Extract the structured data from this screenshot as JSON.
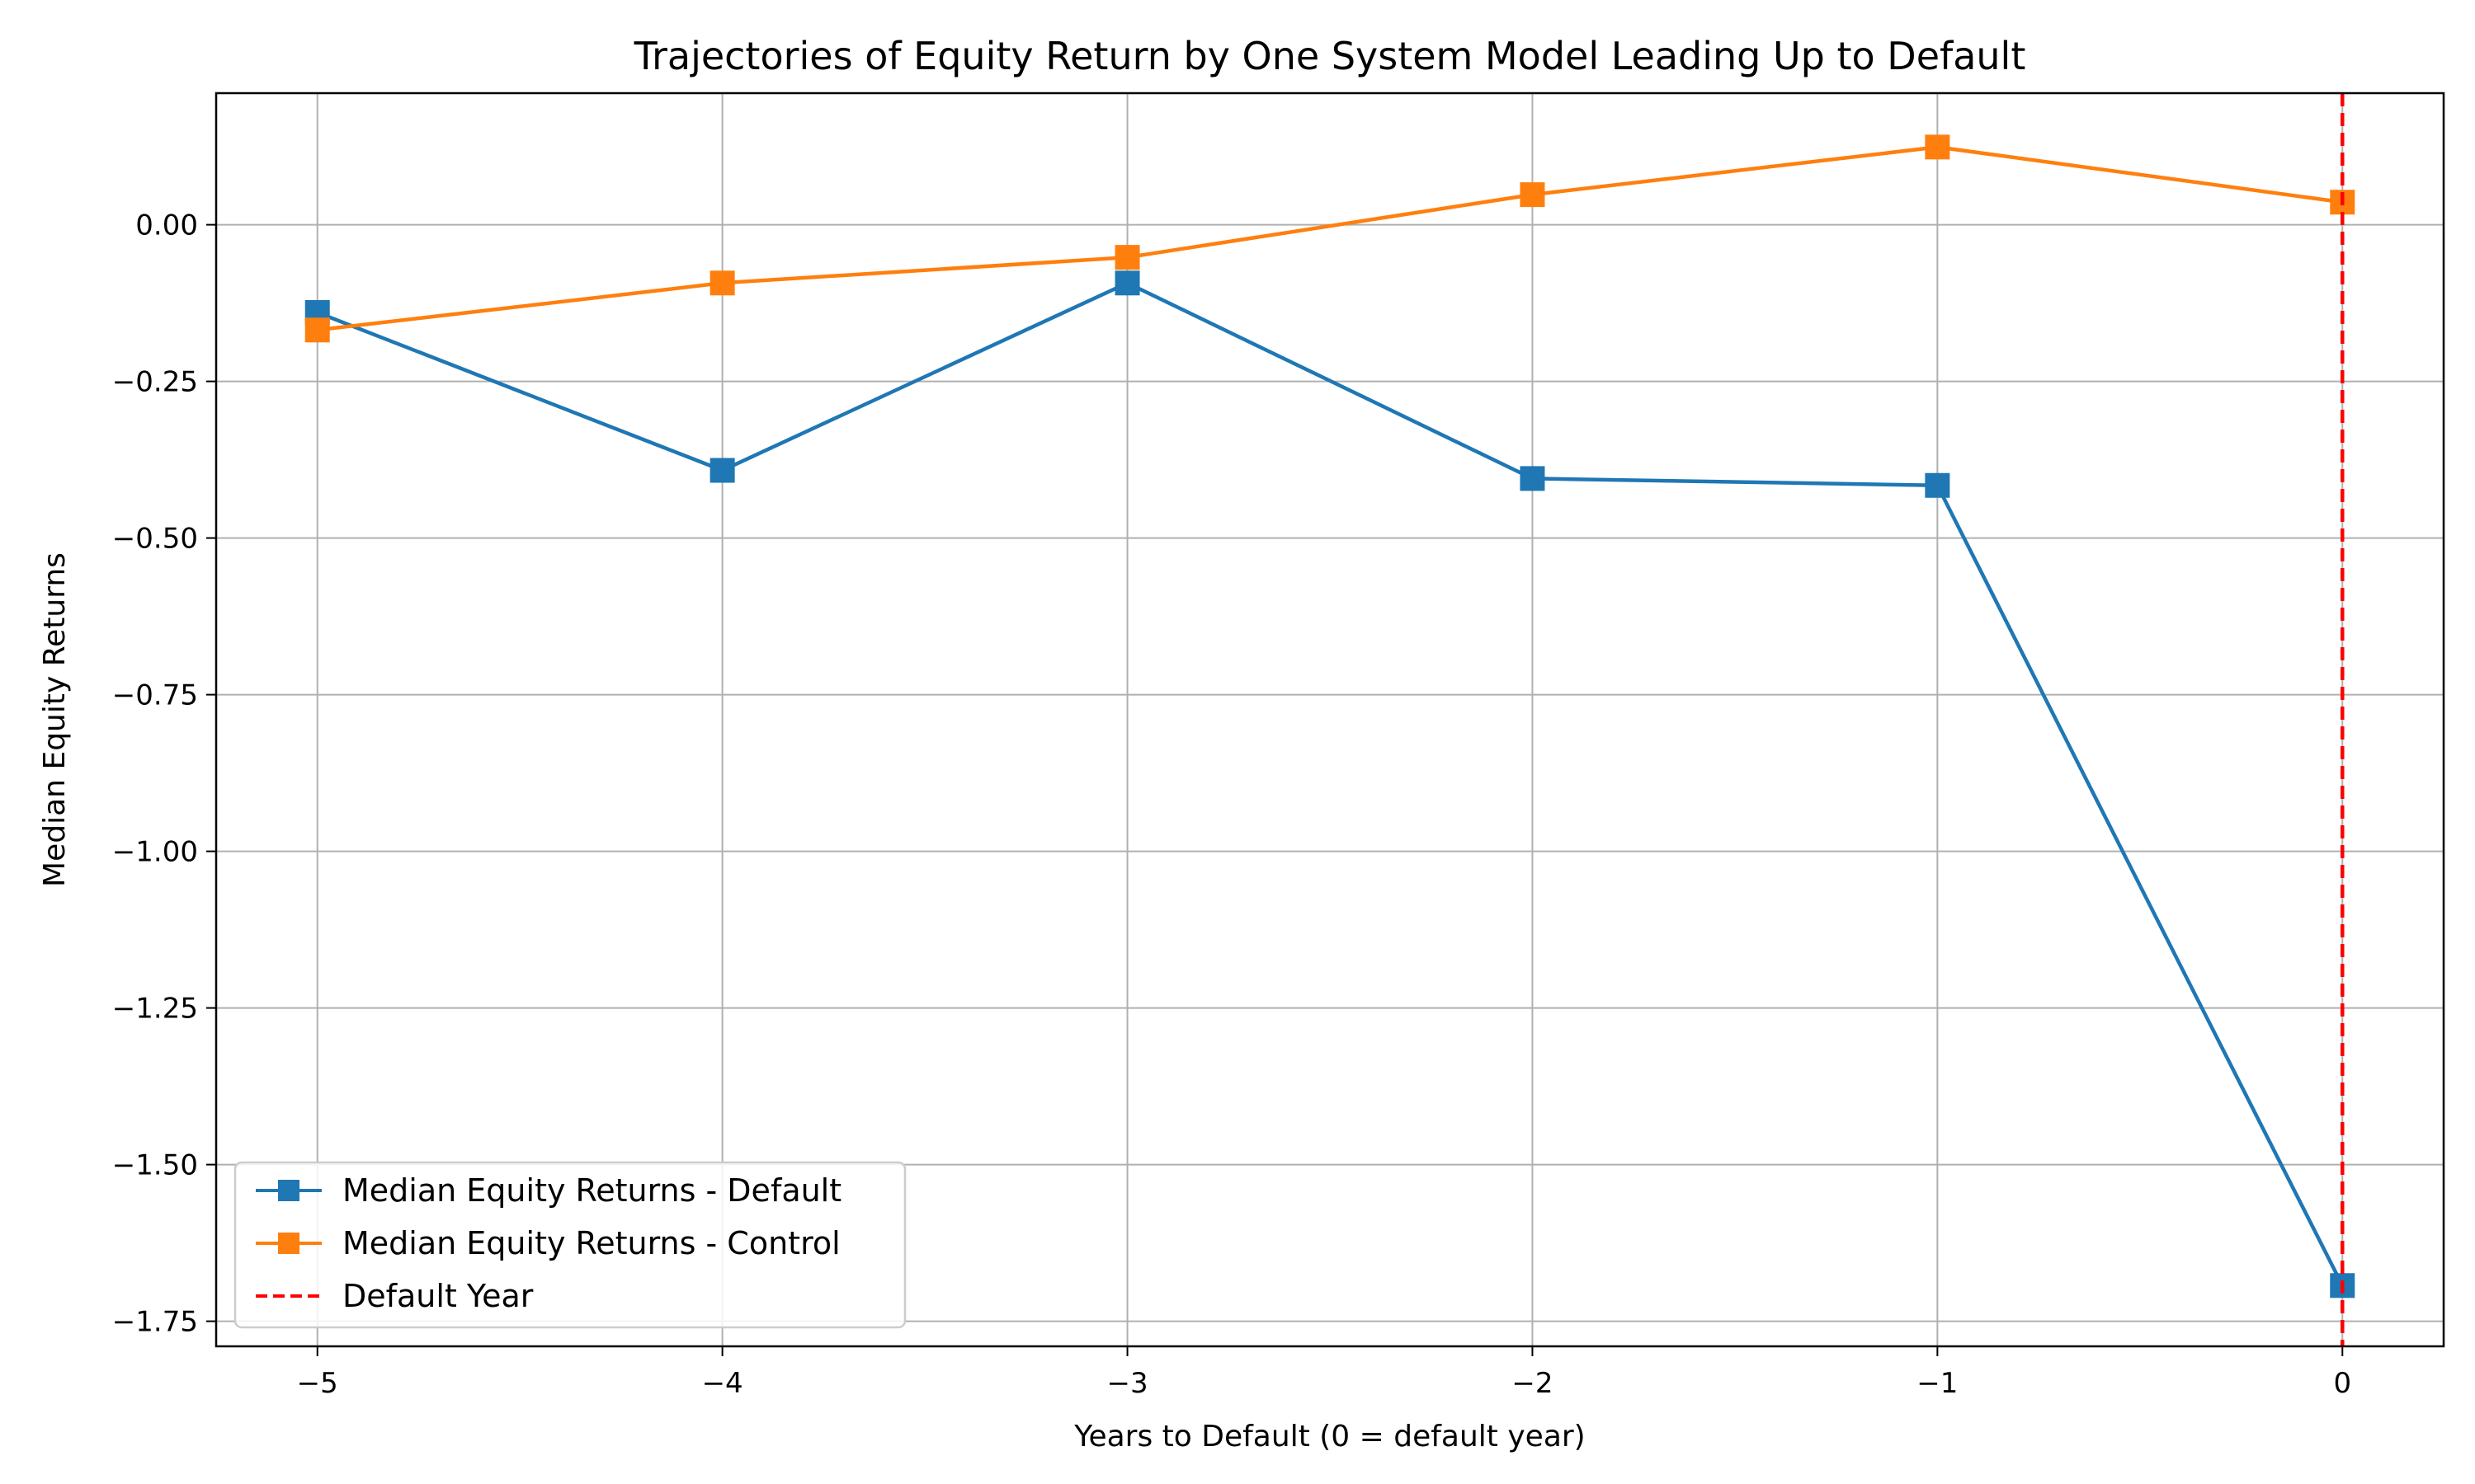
{
  "chart_data": {
    "type": "line",
    "title": "Trajectories of Equity Return by One System Model Leading Up to Default",
    "xlabel": "Years to Default (0 = default year)",
    "ylabel": "Median Equity Returns",
    "x": [
      -5,
      -4,
      -3,
      -2,
      -1,
      0
    ],
    "xlim": [
      -5.25,
      0.25
    ],
    "ylim": [
      -1.79,
      0.21
    ],
    "xticks": [
      -5,
      -4,
      -3,
      -2,
      -1,
      0
    ],
    "xtick_labels": [
      "−5",
      "−4",
      "−3",
      "−2",
      "−1",
      "0"
    ],
    "yticks": [
      0.0,
      -0.25,
      -0.5,
      -0.75,
      -1.0,
      -1.25,
      -1.5,
      -1.75
    ],
    "ytick_labels": [
      "0.00",
      "−0.25",
      "−0.50",
      "−0.75",
      "−1.00",
      "−1.25",
      "−1.50",
      "−1.75"
    ],
    "grid": true,
    "legend_position": "lower-left",
    "series": [
      {
        "name": "Median Equity Returns - Default",
        "color": "#1f77b4",
        "marker": "square",
        "values": [
          -0.14,
          -0.392,
          -0.093,
          -0.405,
          -0.416,
          -1.693
        ]
      },
      {
        "name": "Median Equity Returns - Control",
        "color": "#ff7f0e",
        "marker": "square",
        "values": [
          -0.168,
          -0.093,
          -0.052,
          0.048,
          0.124,
          0.036
        ]
      }
    ],
    "vline": {
      "name": "Default Year",
      "x": 0,
      "color": "#ff0000",
      "style": "dashed"
    }
  }
}
